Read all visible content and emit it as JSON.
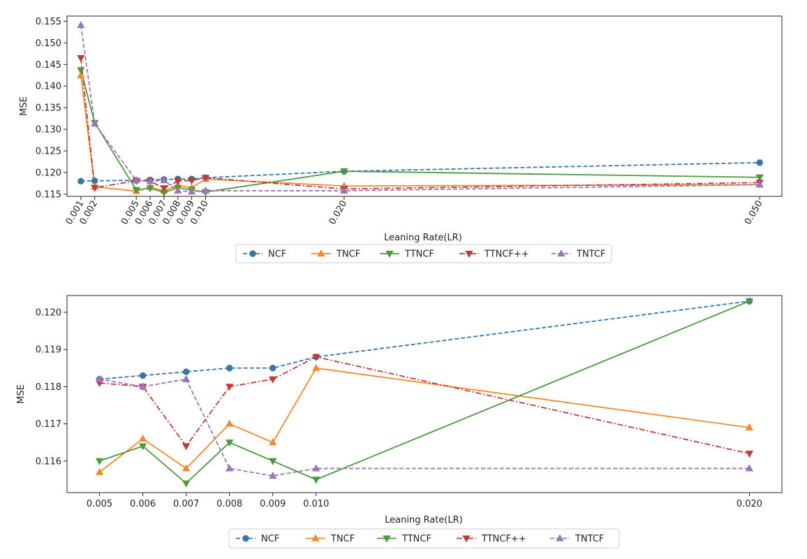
{
  "chart_data": [
    {
      "type": "line",
      "xlabel": "Leaning Rate(LR)",
      "ylabel": "MSE",
      "ylim": [
        0.1145,
        0.1562
      ],
      "xlim": [
        0.0,
        0.0516
      ],
      "y_ticks": [
        "0.115",
        "0.120",
        "0.125",
        "0.130",
        "0.135",
        "0.140",
        "0.145",
        "0.150",
        "0.155"
      ],
      "x_ticks": [
        "0.001",
        "0.002",
        "0.005",
        "0.006",
        "0.007",
        "0.008",
        "0.009",
        "0.010",
        "0.020",
        "0.050"
      ],
      "x_tick_rotation": -60,
      "grid": false,
      "legend_position": "bottom-center",
      "x": [
        0.001,
        0.002,
        0.005,
        0.006,
        0.007,
        0.008,
        0.009,
        0.01,
        0.02,
        0.05
      ],
      "series": [
        {
          "name": "NCF",
          "color": "#3a75a8",
          "marker": "circle",
          "dash": "dashed",
          "values": [
            0.118,
            0.1181,
            0.1182,
            0.1183,
            0.1184,
            0.1185,
            0.1185,
            0.1188,
            0.1203,
            0.1223
          ]
        },
        {
          "name": "TNCF",
          "color": "#ef8a2e",
          "marker": "triangle-up",
          "dash": "solid",
          "values": [
            0.1425,
            0.1167,
            0.1157,
            0.1166,
            0.1158,
            0.117,
            0.1165,
            0.1185,
            0.1169,
            0.1172
          ]
        },
        {
          "name": "TTNCF",
          "color": "#4a9a3e",
          "marker": "triangle-down",
          "dash": "solid",
          "values": [
            0.1437,
            0.1315,
            0.116,
            0.1164,
            0.1154,
            0.1165,
            0.116,
            0.1155,
            0.1203,
            0.1189
          ]
        },
        {
          "name": "TTNCF++",
          "color": "#c03a3a",
          "marker": "triangle-down",
          "dash": "dashdot",
          "values": [
            0.1465,
            0.1165,
            0.1181,
            0.118,
            0.1164,
            0.118,
            0.1182,
            0.1188,
            0.1162,
            0.1177
          ]
        },
        {
          "name": "TNTCF",
          "color": "#9a76b8",
          "marker": "triangle-up",
          "dash": "dashed",
          "values": [
            0.1541,
            0.1313,
            0.1182,
            0.118,
            0.1182,
            0.1158,
            0.1156,
            0.1158,
            0.1158,
            0.1172
          ]
        }
      ]
    },
    {
      "type": "line",
      "xlabel": "Leaning Rate(LR)",
      "ylabel": "MSE",
      "ylim": [
        0.11515,
        0.12045
      ],
      "xlim": [
        0.00425,
        0.02075
      ],
      "y_ticks": [
        "0.116",
        "0.117",
        "0.118",
        "0.119",
        "0.120"
      ],
      "x_ticks": [
        "0.005",
        "0.006",
        "0.007",
        "0.008",
        "0.009",
        "0.010",
        "0.020"
      ],
      "x_tick_rotation": 0,
      "grid": false,
      "legend_position": "bottom-center",
      "x": [
        0.005,
        0.006,
        0.007,
        0.008,
        0.009,
        0.01,
        0.02
      ],
      "series": [
        {
          "name": "NCF",
          "color": "#3a75a8",
          "marker": "circle",
          "dash": "dashed",
          "values": [
            0.1182,
            0.1183,
            0.1184,
            0.1185,
            0.1185,
            0.1188,
            0.1203
          ]
        },
        {
          "name": "TNCF",
          "color": "#ef8a2e",
          "marker": "triangle-up",
          "dash": "solid",
          "values": [
            0.1157,
            0.1166,
            0.1158,
            0.117,
            0.1165,
            0.1185,
            0.1169
          ]
        },
        {
          "name": "TTNCF",
          "color": "#4a9a3e",
          "marker": "triangle-down",
          "dash": "solid",
          "values": [
            0.116,
            0.1164,
            0.1154,
            0.1165,
            0.116,
            0.1155,
            0.1203
          ]
        },
        {
          "name": "TTNCF++",
          "color": "#c03a3a",
          "marker": "triangle-down",
          "dash": "dashdot",
          "values": [
            0.1181,
            0.118,
            0.1164,
            0.118,
            0.1182,
            0.1188,
            0.1162
          ]
        },
        {
          "name": "TNTCF",
          "color": "#9a76b8",
          "marker": "triangle-up",
          "dash": "dashed",
          "values": [
            0.1182,
            0.118,
            0.1182,
            0.1158,
            0.1156,
            0.1158,
            0.1158
          ]
        }
      ]
    }
  ]
}
